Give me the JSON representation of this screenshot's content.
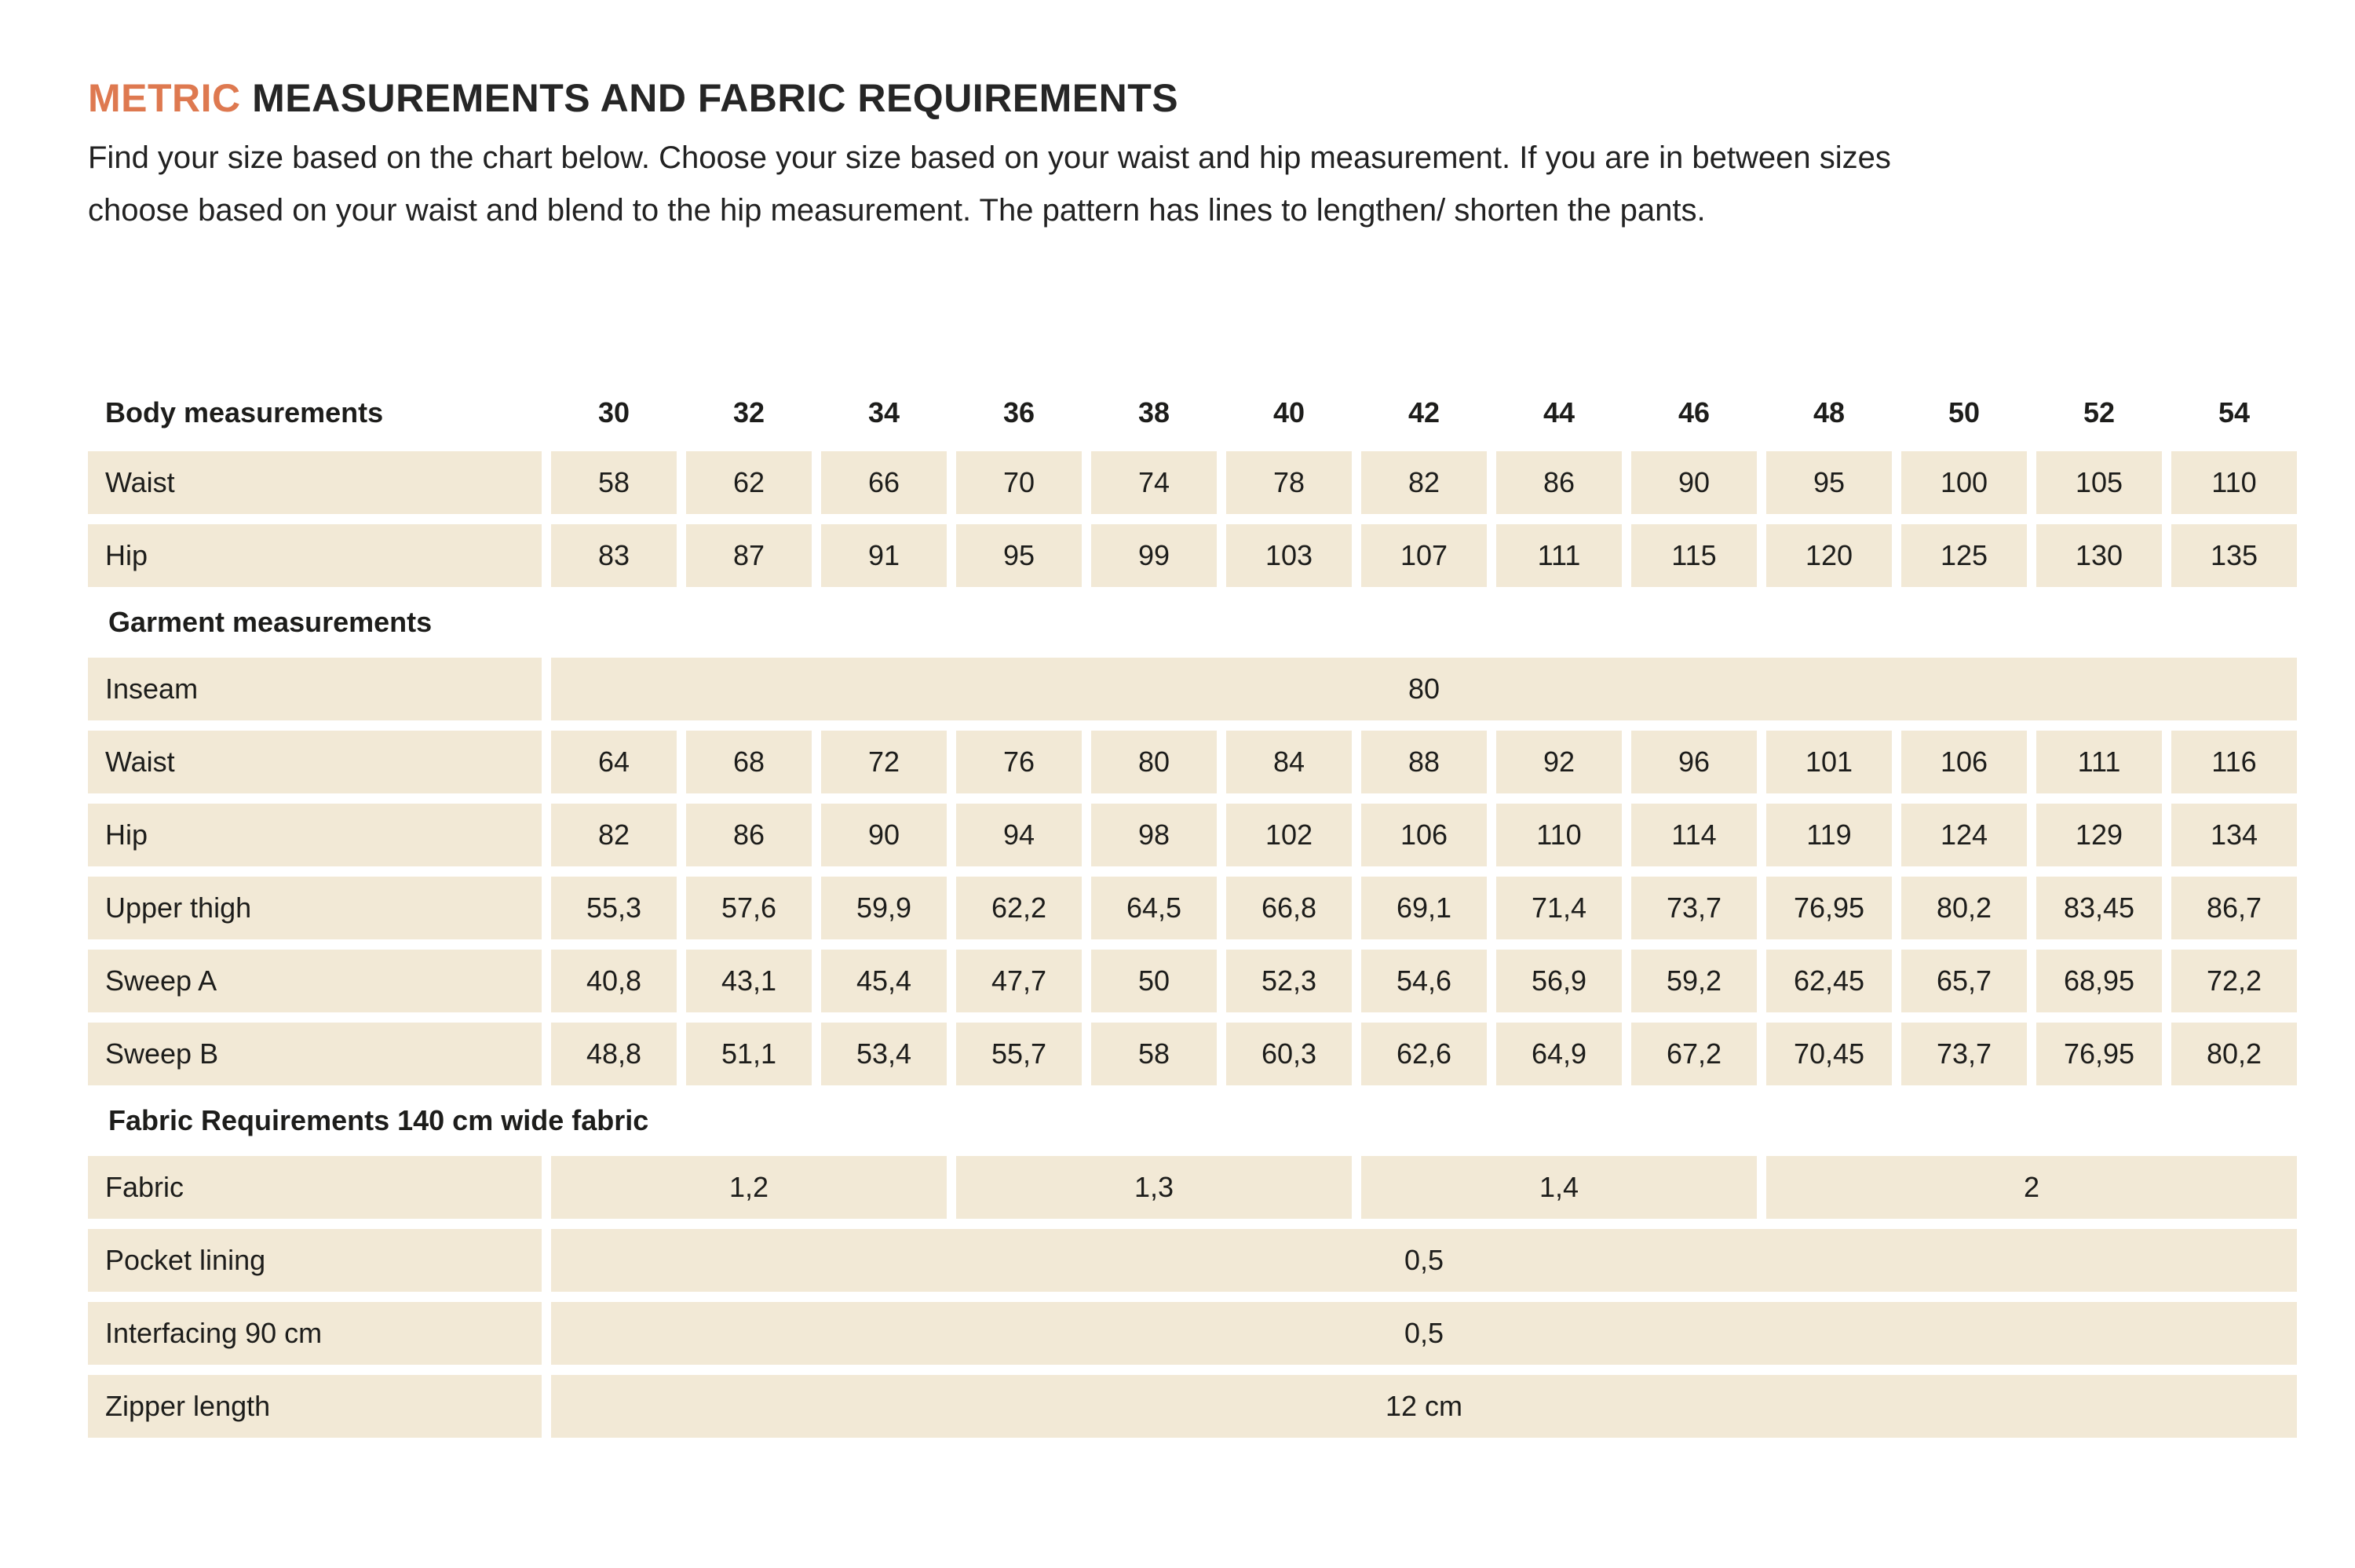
{
  "header": {
    "title_accent": "METRIC",
    "title_rest": "MEASUREMENTS AND FABRIC REQUIREMENTS",
    "intro_lines": [
      "Find your size based on the chart below. Choose your size based on your waist and hip measurement. If you are in between sizes",
      "choose based on your waist and blend to the hip measurement. The pattern has lines to lengthen/ shorten the pants."
    ]
  },
  "colors": {
    "accent": "#DE7950",
    "cell_bg": "#F2E9D6",
    "text": "#1D1D1B"
  },
  "table": {
    "sizes_header_label": "Body measurements",
    "sizes": [
      "30",
      "32",
      "34",
      "36",
      "38",
      "40",
      "42",
      "44",
      "46",
      "48",
      "50",
      "52",
      "54"
    ],
    "body_rows": [
      {
        "label": "Waist",
        "values": [
          "58",
          "62",
          "66",
          "70",
          "74",
          "78",
          "82",
          "86",
          "90",
          "95",
          "100",
          "105",
          "110"
        ]
      },
      {
        "label": "Hip",
        "values": [
          "83",
          "87",
          "91",
          "95",
          "99",
          "103",
          "107",
          "111",
          "115",
          "120",
          "125",
          "130",
          "135"
        ]
      }
    ],
    "garment_section_label": "Garment measurements",
    "garment_rows": [
      {
        "label": "Inseam",
        "span_value": "80"
      },
      {
        "label": "Waist",
        "values": [
          "64",
          "68",
          "72",
          "76",
          "80",
          "84",
          "88",
          "92",
          "96",
          "101",
          "106",
          "111",
          "116"
        ]
      },
      {
        "label": "Hip",
        "values": [
          "82",
          "86",
          "90",
          "94",
          "98",
          "102",
          "106",
          "110",
          "114",
          "119",
          "124",
          "129",
          "134"
        ]
      },
      {
        "label": "Upper thigh",
        "values": [
          "55,3",
          "57,6",
          "59,9",
          "62,2",
          "64,5",
          "66,8",
          "69,1",
          "71,4",
          "73,7",
          "76,95",
          "80,2",
          "83,45",
          "86,7"
        ]
      },
      {
        "label": "Sweep A",
        "values": [
          "40,8",
          "43,1",
          "45,4",
          "47,7",
          "50",
          "52,3",
          "54,6",
          "56,9",
          "59,2",
          "62,45",
          "65,7",
          "68,95",
          "72,2"
        ]
      },
      {
        "label": "Sweep B",
        "values": [
          "48,8",
          "51,1",
          "53,4",
          "55,7",
          "58",
          "60,3",
          "62,6",
          "64,9",
          "67,2",
          "70,45",
          "73,7",
          "76,95",
          "80,2"
        ]
      }
    ],
    "fabric_section_label": "Fabric Requirements 140 cm wide fabric",
    "fabric_rows": [
      {
        "label": "Fabric",
        "groups": [
          {
            "value": "1,2",
            "span": 3
          },
          {
            "value": "1,3",
            "span": 3
          },
          {
            "value": "1,4",
            "span": 3
          },
          {
            "value": "2",
            "span": 4
          }
        ]
      },
      {
        "label": "Pocket lining",
        "span_value": "0,5"
      },
      {
        "label": "Interfacing 90 cm",
        "span_value": "0,5"
      },
      {
        "label": "Zipper length",
        "span_value": "12 cm"
      }
    ]
  }
}
